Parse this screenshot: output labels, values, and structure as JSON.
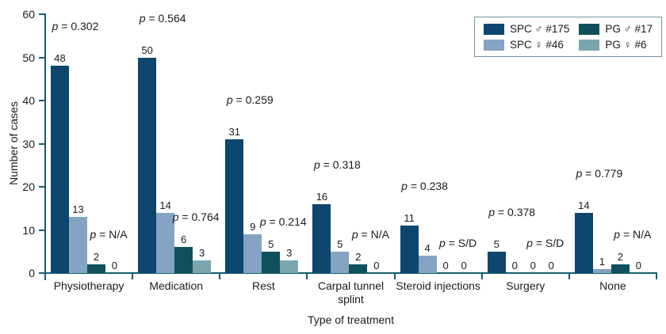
{
  "chart_data": {
    "type": "bar",
    "title": "",
    "xlabel": "Type of treatment",
    "ylabel": "Number of cases",
    "ylim": [
      0,
      60
    ],
    "yticks": [
      0,
      10,
      20,
      30,
      40,
      50,
      60
    ],
    "grid": false,
    "legend_position": "top-right",
    "axis_color": "#155e72",
    "text_color": "#1a1a1a",
    "categories": [
      "Physiotherapy",
      "Medication",
      "Rest",
      "Carpal tunnel splint",
      "Steroid injections",
      "Surgery",
      "None"
    ],
    "series": [
      {
        "name": "SPC ♂ #175",
        "color": "#0d466e",
        "values": [
          48,
          50,
          31,
          16,
          11,
          5,
          14
        ]
      },
      {
        "name": "SPC ♀ #46",
        "color": "#85a3c3",
        "values": [
          13,
          14,
          9,
          5,
          4,
          0,
          1
        ]
      },
      {
        "name": "PG ♂ #17",
        "color": "#10505d",
        "values": [
          2,
          6,
          5,
          2,
          0,
          0,
          2
        ]
      },
      {
        "name": "PG ♀ #6",
        "color": "#7ba6b0",
        "values": [
          0,
          3,
          3,
          0,
          0,
          0,
          0
        ]
      }
    ],
    "legend_display_order": [
      0,
      2,
      1,
      3
    ],
    "p_annotations": [
      {
        "category": "Physiotherapy",
        "top": "p = 0.302",
        "bottom": "p = N/A"
      },
      {
        "category": "Medication",
        "top": "p = 0.564",
        "bottom": "p = 0.764"
      },
      {
        "category": "Rest",
        "top": "p = 0.259",
        "bottom": "p = 0.214"
      },
      {
        "category": "Carpal tunnel splint",
        "top": "p = 0.318",
        "bottom": "p = N/A"
      },
      {
        "category": "Steroid injections",
        "top": "p = 0.238",
        "bottom": "p = S/D"
      },
      {
        "category": "Surgery",
        "top": "p = 0.378",
        "bottom": "p = S/D"
      },
      {
        "category": "None",
        "top": "p = 0.779",
        "bottom": "p = N/A"
      }
    ]
  }
}
